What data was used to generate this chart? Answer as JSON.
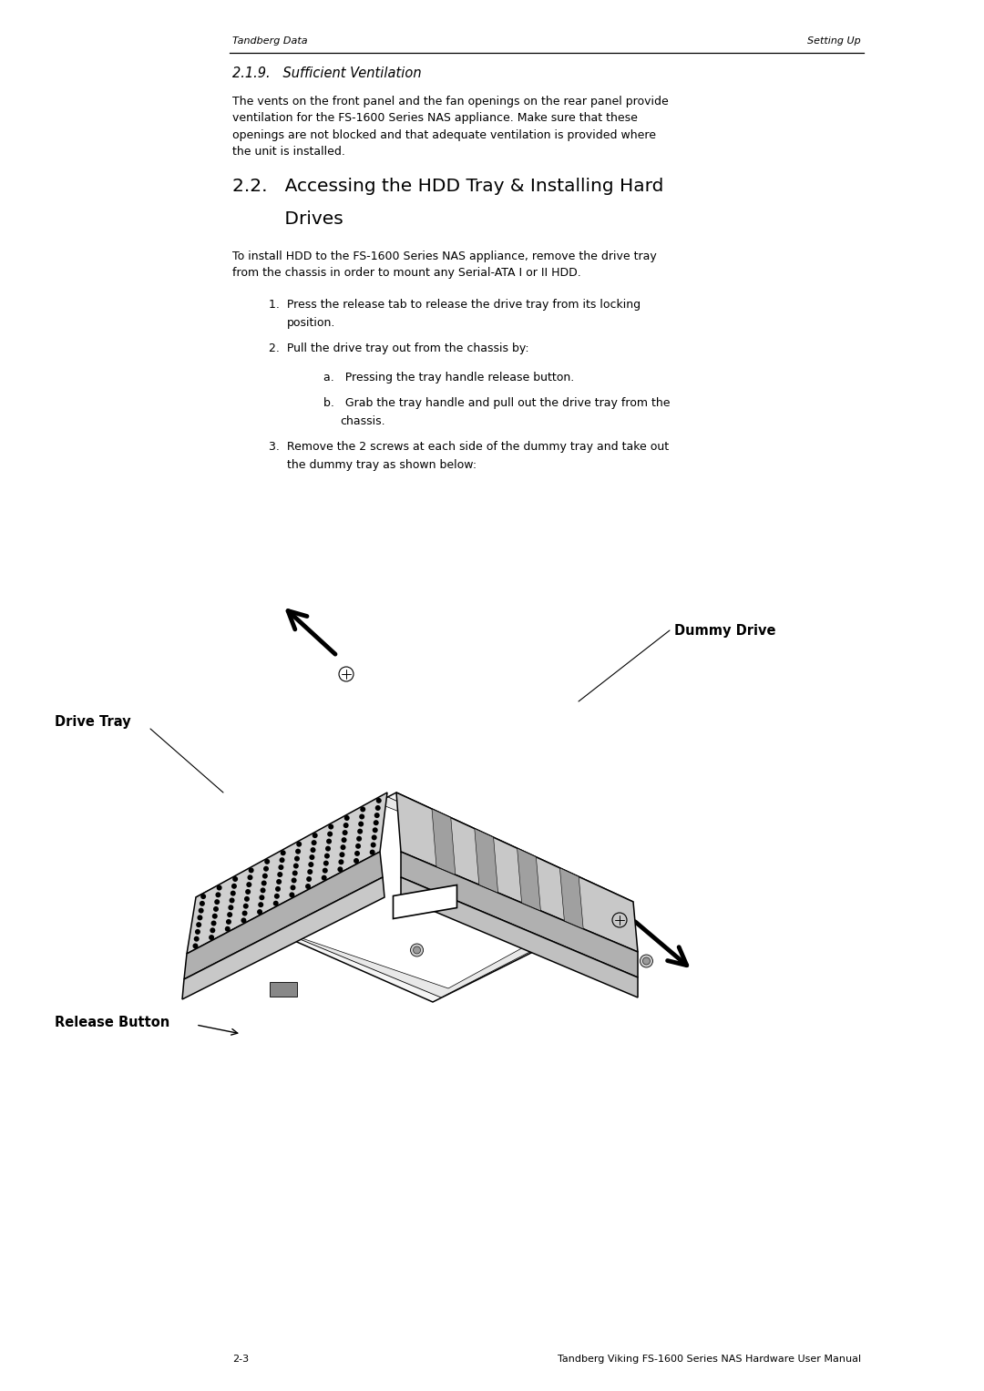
{
  "page_width": 10.8,
  "page_height": 15.27,
  "bg_color": "#ffffff",
  "header_left": "Tandberg Data",
  "header_right": "Setting Up",
  "footer_center": "2-3",
  "footer_right": "Tandberg Viking FS-1600 Series NAS Hardware User Manual",
  "section_219_title": "2.1.9.   Sufficient Ventilation",
  "section_22_title_line1": "2.2.   Accessing the HDD Tray & Installing Hard",
  "section_22_title_line2": "         Drives",
  "body_219": "The vents on the front panel and the fan openings on the rear panel provide\nventilation for the FS-1600 Series NAS appliance. Make sure that these\nopenings are not blocked and that adequate ventilation is provided where\nthe unit is installed.",
  "body_22": "To install HDD to the FS-1600 Series NAS appliance, remove the drive tray\nfrom the chassis in order to mount any Serial-ATA I or II HDD.",
  "item1": "1.  Press the release tab to release the drive tray from its locking\n      position.",
  "item2": "2.  Pull the drive tray out from the chassis by:",
  "item2a": "a.   Pressing the tray handle release button.",
  "item2b": "b.   Grab the tray handle and pull out the drive tray from the\n       chassis.",
  "item3": "3.  Remove the 2 screws at each side of the dummy tray and take out\n      the dummy tray as shown below:",
  "label_dummy_drive": "Dummy Drive",
  "label_drive_tray": "Drive Tray",
  "label_release_button": "Release Button",
  "text_color": "#000000",
  "line_color": "#000000"
}
